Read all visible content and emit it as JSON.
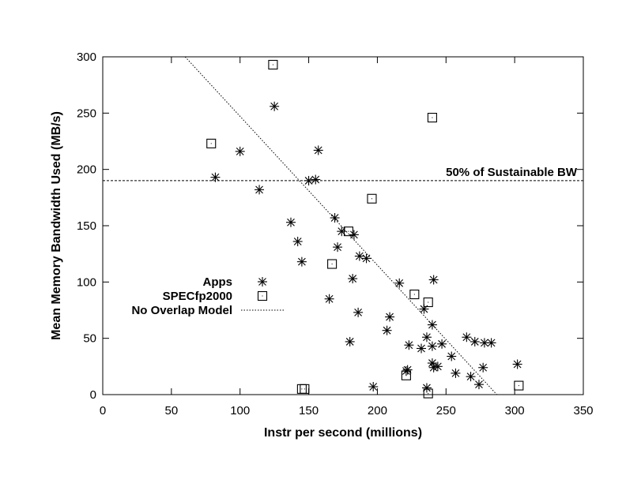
{
  "chart_data": {
    "type": "scatter",
    "title": "",
    "xlabel": "Instr per second (millions)",
    "ylabel": "Mean Memory Bandwidth Used (MB/s)",
    "xlim": [
      0,
      350
    ],
    "ylim": [
      0,
      300
    ],
    "x_ticks": [
      0,
      50,
      100,
      150,
      200,
      250,
      300,
      350
    ],
    "y_ticks": [
      0,
      50,
      100,
      150,
      200,
      250,
      300
    ],
    "grid": false,
    "legend_position": "left-middle",
    "series": [
      {
        "name": "Apps",
        "marker": "asterisk",
        "points": [
          [
            125,
            256
          ],
          [
            100,
            216
          ],
          [
            157,
            217
          ],
          [
            82,
            193
          ],
          [
            155,
            191
          ],
          [
            150,
            190
          ],
          [
            114,
            182
          ],
          [
            169,
            157
          ],
          [
            137,
            153
          ],
          [
            174,
            145
          ],
          [
            183,
            142
          ],
          [
            142,
            136
          ],
          [
            171,
            131
          ],
          [
            187,
            123
          ],
          [
            192,
            121
          ],
          [
            145,
            118
          ],
          [
            182,
            103
          ],
          [
            241,
            102
          ],
          [
            216,
            99
          ],
          [
            165,
            85
          ],
          [
            186,
            73
          ],
          [
            234,
            76
          ],
          [
            209,
            69
          ],
          [
            240,
            62
          ],
          [
            236,
            51
          ],
          [
            265,
            51
          ],
          [
            271,
            47
          ],
          [
            278,
            46
          ],
          [
            283,
            46
          ],
          [
            180,
            47
          ],
          [
            247,
            45
          ],
          [
            223,
            44
          ],
          [
            232,
            41
          ],
          [
            240,
            43
          ],
          [
            207,
            57
          ],
          [
            254,
            34
          ],
          [
            240,
            28
          ],
          [
            244,
            25
          ],
          [
            241,
            24
          ],
          [
            302,
            27
          ],
          [
            277,
            24
          ],
          [
            222,
            22
          ],
          [
            221,
            21
          ],
          [
            257,
            19
          ],
          [
            268,
            16
          ],
          [
            274,
            9
          ],
          [
            197,
            7
          ],
          [
            236,
            6
          ]
        ]
      },
      {
        "name": "SPECfp2000",
        "marker": "square",
        "points": [
          [
            124,
            293
          ],
          [
            240,
            246
          ],
          [
            79,
            223
          ],
          [
            196,
            174
          ],
          [
            179,
            145
          ],
          [
            167,
            116
          ],
          [
            227,
            89
          ],
          [
            237,
            82
          ],
          [
            221,
            17
          ],
          [
            303,
            8
          ],
          [
            145,
            5
          ],
          [
            147,
            5
          ],
          [
            237,
            1
          ]
        ]
      },
      {
        "name": "No Overlap Model",
        "marker": "line-dotted",
        "points": [
          [
            60,
            300
          ],
          [
            287,
            0
          ]
        ]
      }
    ],
    "reference_lines": [
      {
        "label": "50% of Sustainable BW",
        "y": 190,
        "style": "dashed"
      }
    ]
  }
}
